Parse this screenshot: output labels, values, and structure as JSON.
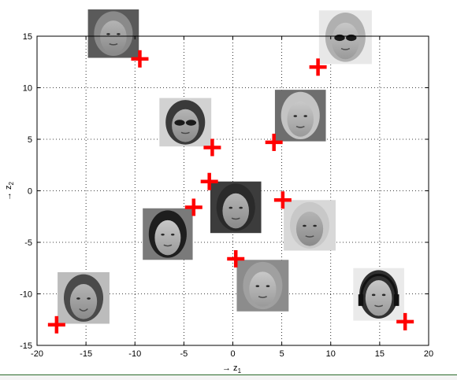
{
  "chart_data": {
    "type": "scatter",
    "xlim": [
      -20,
      20
    ],
    "ylim": [
      -15,
      15
    ],
    "xticks": [
      -20,
      -15,
      -10,
      -5,
      0,
      5,
      10,
      15,
      20
    ],
    "yticks": [
      -15,
      -10,
      -5,
      0,
      5,
      10,
      15
    ],
    "grid": true,
    "grid_style": "dotted",
    "marker": "plus",
    "marker_color": "#ff0000",
    "points": [
      {
        "x": -9.5,
        "y": 12.8,
        "image": "face-1"
      },
      {
        "x": 8.7,
        "y": 12.0,
        "image": "face-2-sunglasses"
      },
      {
        "x": -2.1,
        "y": 4.2,
        "image": "face-3-sunglasses"
      },
      {
        "x": 4.2,
        "y": 4.7,
        "image": "face-4"
      },
      {
        "x": -2.4,
        "y": 0.9,
        "image": "face-5"
      },
      {
        "x": -4.0,
        "y": -1.6,
        "image": "face-6"
      },
      {
        "x": 5.1,
        "y": -0.9,
        "image": "face-7"
      },
      {
        "x": 0.3,
        "y": -6.6,
        "image": "face-8"
      },
      {
        "x": -18.0,
        "y": -13.0,
        "image": "face-9-smiling"
      },
      {
        "x": 17.6,
        "y": -12.7,
        "image": "face-10-headphones"
      }
    ],
    "images": [
      {
        "id": "face-1",
        "x_range": [
          -14.8,
          -9.6
        ],
        "y_range": [
          12.9,
          17.6
        ]
      },
      {
        "id": "face-2-sunglasses",
        "x_range": [
          8.8,
          14.2
        ],
        "y_range": [
          12.3,
          17.5
        ]
      },
      {
        "id": "face-3-sunglasses",
        "x_range": [
          -7.5,
          -2.2
        ],
        "y_range": [
          4.3,
          9.0
        ]
      },
      {
        "id": "face-4",
        "x_range": [
          4.3,
          9.5
        ],
        "y_range": [
          4.8,
          9.8
        ]
      },
      {
        "id": "face-5",
        "x_range": [
          -2.3,
          2.9
        ],
        "y_range": [
          -4.1,
          0.9
        ]
      },
      {
        "id": "face-6",
        "x_range": [
          -9.2,
          -4.1
        ],
        "y_range": [
          -6.7,
          -1.7
        ]
      },
      {
        "id": "face-7",
        "x_range": [
          5.2,
          10.5
        ],
        "y_range": [
          -5.8,
          -0.9
        ]
      },
      {
        "id": "face-8",
        "x_range": [
          0.4,
          5.7
        ],
        "y_range": [
          -11.7,
          -6.7
        ]
      },
      {
        "id": "face-9-smiling",
        "x_range": [
          -17.9,
          -12.6
        ],
        "y_range": [
          -12.9,
          -7.9
        ]
      },
      {
        "id": "face-10-headphones",
        "x_range": [
          12.3,
          17.5
        ],
        "y_range": [
          -12.6,
          -7.5
        ]
      }
    ]
  },
  "axes": {
    "xlabel": "→ z",
    "xlabel_sub": "1",
    "ylabel": "→ z",
    "ylabel_sub": "2"
  }
}
